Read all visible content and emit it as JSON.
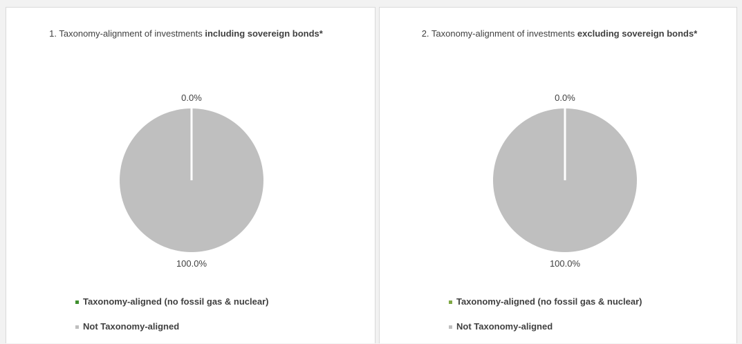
{
  "chart_data": [
    {
      "type": "pie",
      "title": "1. Taxonomy-alignment of investments",
      "title_bold": "including sovereign bonds*",
      "categories": [
        "Taxonomy-aligned (no fossil gas & nuclear)",
        "Not Taxonomy-aligned"
      ],
      "values": [
        0,
        100
      ],
      "value_labels": [
        "0.0%",
        "100.0%"
      ],
      "colors": [
        "#3f8f2f",
        "#bfbfbf"
      ]
    },
    {
      "type": "pie",
      "title": "2. Taxonomy-alignment of investments",
      "title_bold": "excluding sovereign bonds*",
      "categories": [
        "Taxonomy-aligned (no fossil gas & nuclear)",
        "Not Taxonomy-aligned"
      ],
      "values": [
        0,
        100
      ],
      "value_labels": [
        "0.0%",
        "100.0%"
      ],
      "colors": [
        "#7fa845",
        "#bfbfbf"
      ]
    }
  ]
}
